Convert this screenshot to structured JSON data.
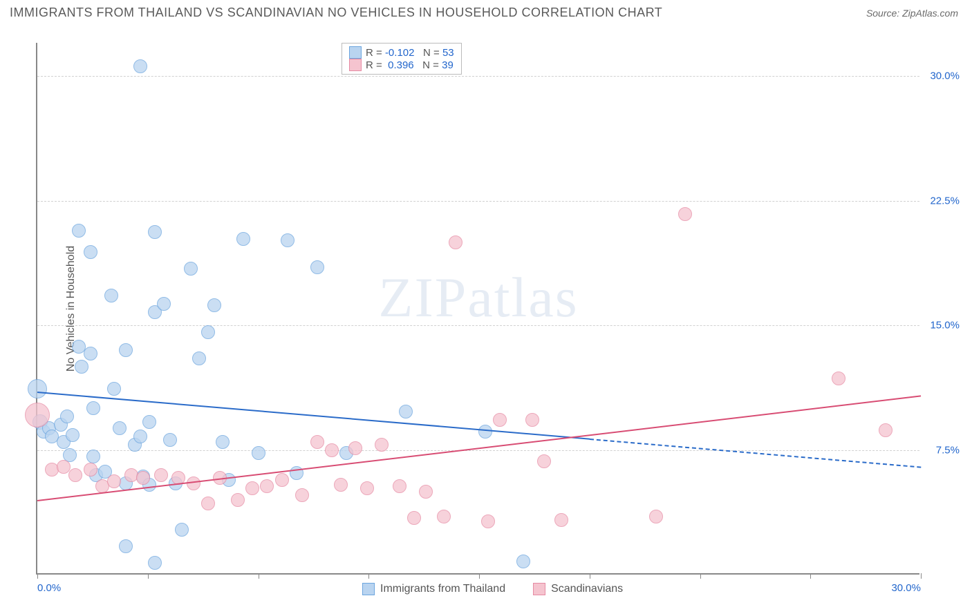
{
  "header": {
    "title": "IMMIGRANTS FROM THAILAND VS SCANDINAVIAN NO VEHICLES IN HOUSEHOLD CORRELATION CHART",
    "source_label": "Source: ",
    "source_value": "ZipAtlas.com"
  },
  "chart": {
    "type": "scatter",
    "y_axis_label": "No Vehicles in Household",
    "xlim": [
      0,
      30
    ],
    "ylim": [
      0,
      32
    ],
    "x_ticks": [
      0,
      3.75,
      7.5,
      11.25,
      15,
      18.75,
      22.5,
      26.25,
      30
    ],
    "x_tick_labels": {
      "0": "0.0%",
      "30": "30.0%"
    },
    "y_ticks": [
      7.5,
      15.0,
      22.5,
      30.0
    ],
    "y_tick_labels": [
      "7.5%",
      "15.0%",
      "22.5%",
      "30.0%"
    ],
    "grid_color": "#d0d0d0",
    "axis_color": "#888888",
    "label_color": "#2266cc",
    "label_fontsize": 15,
    "background_color": "#ffffff",
    "watermark": "ZIPatlas"
  },
  "series": [
    {
      "name": "Immigrants from Thailand",
      "color_fill": "#b9d4f0",
      "color_stroke": "#6ca5de",
      "opacity": 0.75,
      "trend": {
        "y_at_xmin": 11.0,
        "y_at_xmax": 6.5,
        "color": "#2a6bc9",
        "solid_until_x": 18.75
      },
      "stats": {
        "R": "-0.102",
        "N": "53"
      },
      "default_r": 10,
      "points": [
        {
          "x": 0.0,
          "y": 11.2,
          "r": 14
        },
        {
          "x": 0.1,
          "y": 9.2,
          "r": 11
        },
        {
          "x": 0.2,
          "y": 8.6
        },
        {
          "x": 0.4,
          "y": 8.8
        },
        {
          "x": 0.5,
          "y": 8.3
        },
        {
          "x": 0.8,
          "y": 9.0
        },
        {
          "x": 0.9,
          "y": 8.0
        },
        {
          "x": 1.0,
          "y": 9.5
        },
        {
          "x": 1.1,
          "y": 7.2
        },
        {
          "x": 1.2,
          "y": 8.4
        },
        {
          "x": 1.4,
          "y": 20.7
        },
        {
          "x": 1.4,
          "y": 13.7
        },
        {
          "x": 1.5,
          "y": 12.5
        },
        {
          "x": 1.8,
          "y": 19.4
        },
        {
          "x": 1.8,
          "y": 13.3
        },
        {
          "x": 1.9,
          "y": 10.0
        },
        {
          "x": 1.9,
          "y": 7.1
        },
        {
          "x": 2.0,
          "y": 6.0
        },
        {
          "x": 2.3,
          "y": 6.2
        },
        {
          "x": 2.5,
          "y": 16.8
        },
        {
          "x": 2.6,
          "y": 11.2
        },
        {
          "x": 2.8,
          "y": 8.8
        },
        {
          "x": 3.0,
          "y": 13.5
        },
        {
          "x": 3.0,
          "y": 5.5
        },
        {
          "x": 3.0,
          "y": 1.7
        },
        {
          "x": 3.3,
          "y": 7.8
        },
        {
          "x": 3.5,
          "y": 30.6
        },
        {
          "x": 3.5,
          "y": 8.3
        },
        {
          "x": 3.6,
          "y": 5.9
        },
        {
          "x": 3.8,
          "y": 9.2
        },
        {
          "x": 3.8,
          "y": 5.4
        },
        {
          "x": 4.0,
          "y": 20.6
        },
        {
          "x": 4.0,
          "y": 15.8
        },
        {
          "x": 4.0,
          "y": 0.7
        },
        {
          "x": 4.3,
          "y": 16.3
        },
        {
          "x": 4.5,
          "y": 8.1
        },
        {
          "x": 4.7,
          "y": 5.5
        },
        {
          "x": 4.9,
          "y": 2.7
        },
        {
          "x": 5.2,
          "y": 18.4
        },
        {
          "x": 5.5,
          "y": 13.0
        },
        {
          "x": 5.8,
          "y": 14.6
        },
        {
          "x": 6.0,
          "y": 16.2
        },
        {
          "x": 6.3,
          "y": 8.0
        },
        {
          "x": 6.5,
          "y": 5.7
        },
        {
          "x": 7.0,
          "y": 20.2
        },
        {
          "x": 7.5,
          "y": 7.3
        },
        {
          "x": 8.5,
          "y": 20.1
        },
        {
          "x": 8.8,
          "y": 6.1
        },
        {
          "x": 9.5,
          "y": 18.5
        },
        {
          "x": 10.5,
          "y": 7.3
        },
        {
          "x": 12.5,
          "y": 9.8
        },
        {
          "x": 15.2,
          "y": 8.6
        },
        {
          "x": 16.5,
          "y": 0.8
        }
      ]
    },
    {
      "name": "Scandinavians",
      "color_fill": "#f5c4cf",
      "color_stroke": "#e68aa3",
      "opacity": 0.75,
      "trend": {
        "y_at_xmin": 4.5,
        "y_at_xmax": 10.8,
        "color": "#d84c73",
        "solid_until_x": 30
      },
      "stats": {
        "R": "0.396",
        "N": "39"
      },
      "default_r": 10,
      "points": [
        {
          "x": 0.0,
          "y": 9.6,
          "r": 18
        },
        {
          "x": 0.5,
          "y": 6.3
        },
        {
          "x": 0.9,
          "y": 6.5
        },
        {
          "x": 1.3,
          "y": 6.0
        },
        {
          "x": 1.8,
          "y": 6.3
        },
        {
          "x": 2.2,
          "y": 5.3
        },
        {
          "x": 2.6,
          "y": 5.6
        },
        {
          "x": 3.2,
          "y": 6.0
        },
        {
          "x": 3.6,
          "y": 5.8
        },
        {
          "x": 4.2,
          "y": 6.0
        },
        {
          "x": 4.8,
          "y": 5.8
        },
        {
          "x": 5.3,
          "y": 5.5
        },
        {
          "x": 5.8,
          "y": 4.3
        },
        {
          "x": 6.2,
          "y": 5.8
        },
        {
          "x": 6.8,
          "y": 4.5
        },
        {
          "x": 7.3,
          "y": 5.2
        },
        {
          "x": 7.8,
          "y": 5.3
        },
        {
          "x": 8.3,
          "y": 5.7
        },
        {
          "x": 9.0,
          "y": 4.8
        },
        {
          "x": 9.5,
          "y": 8.0
        },
        {
          "x": 10.0,
          "y": 7.5
        },
        {
          "x": 10.3,
          "y": 5.4
        },
        {
          "x": 10.8,
          "y": 7.6
        },
        {
          "x": 11.2,
          "y": 5.2
        },
        {
          "x": 11.7,
          "y": 7.8
        },
        {
          "x": 12.3,
          "y": 5.3
        },
        {
          "x": 12.8,
          "y": 3.4
        },
        {
          "x": 13.2,
          "y": 5.0
        },
        {
          "x": 13.8,
          "y": 3.5
        },
        {
          "x": 14.2,
          "y": 20.0
        },
        {
          "x": 15.3,
          "y": 3.2
        },
        {
          "x": 15.7,
          "y": 9.3
        },
        {
          "x": 16.8,
          "y": 9.3
        },
        {
          "x": 17.2,
          "y": 6.8
        },
        {
          "x": 17.8,
          "y": 3.3
        },
        {
          "x": 21.0,
          "y": 3.5
        },
        {
          "x": 22.0,
          "y": 21.7
        },
        {
          "x": 27.2,
          "y": 11.8
        },
        {
          "x": 28.8,
          "y": 8.7
        }
      ]
    }
  ],
  "legend_stats": {
    "r_label": "R = ",
    "n_label": "N = "
  },
  "bottom_legend": {
    "items": [
      "Immigrants from Thailand",
      "Scandinavians"
    ]
  }
}
